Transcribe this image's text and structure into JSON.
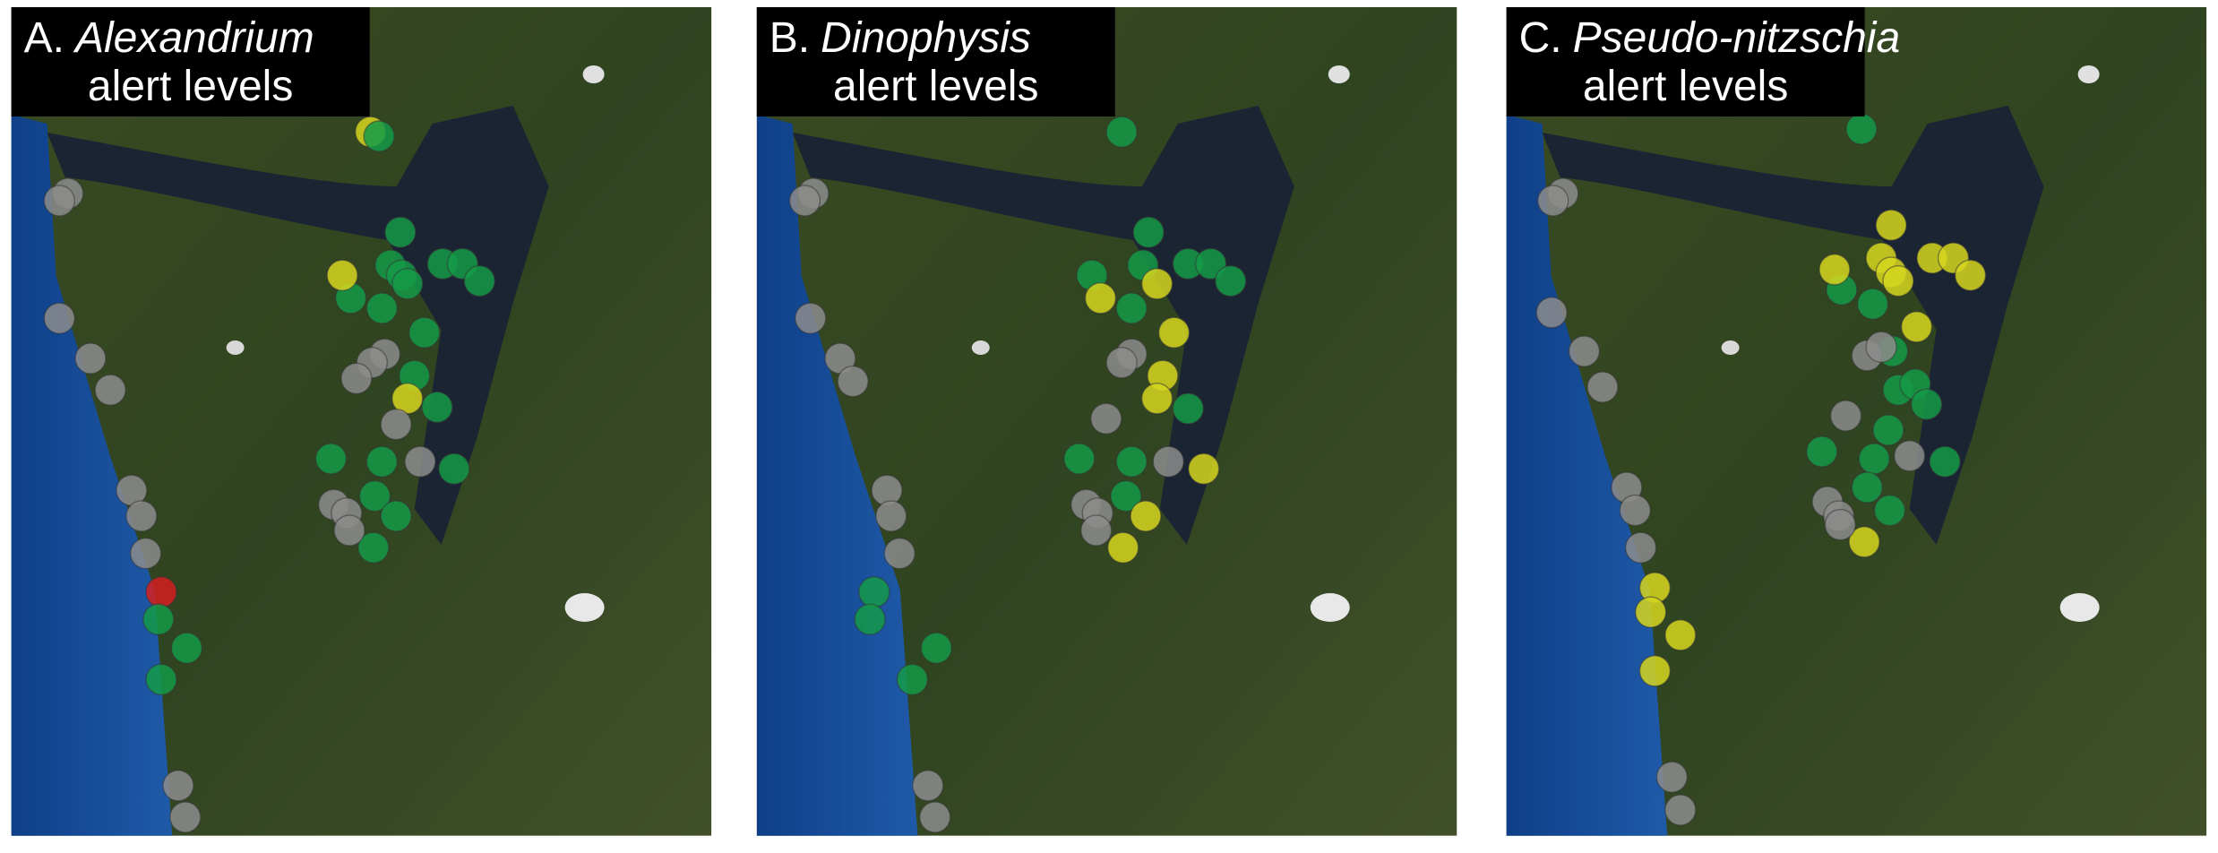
{
  "panels": [
    {
      "letter": "A.",
      "genus": "Alexandrium",
      "subtitle": "alert levels"
    },
    {
      "letter": "B.",
      "genus": "Dinophysis",
      "subtitle": "alert levels"
    },
    {
      "letter": "C.",
      "genus": "Pseudo-nitzschia",
      "subtitle": "alert levels"
    }
  ]
}
